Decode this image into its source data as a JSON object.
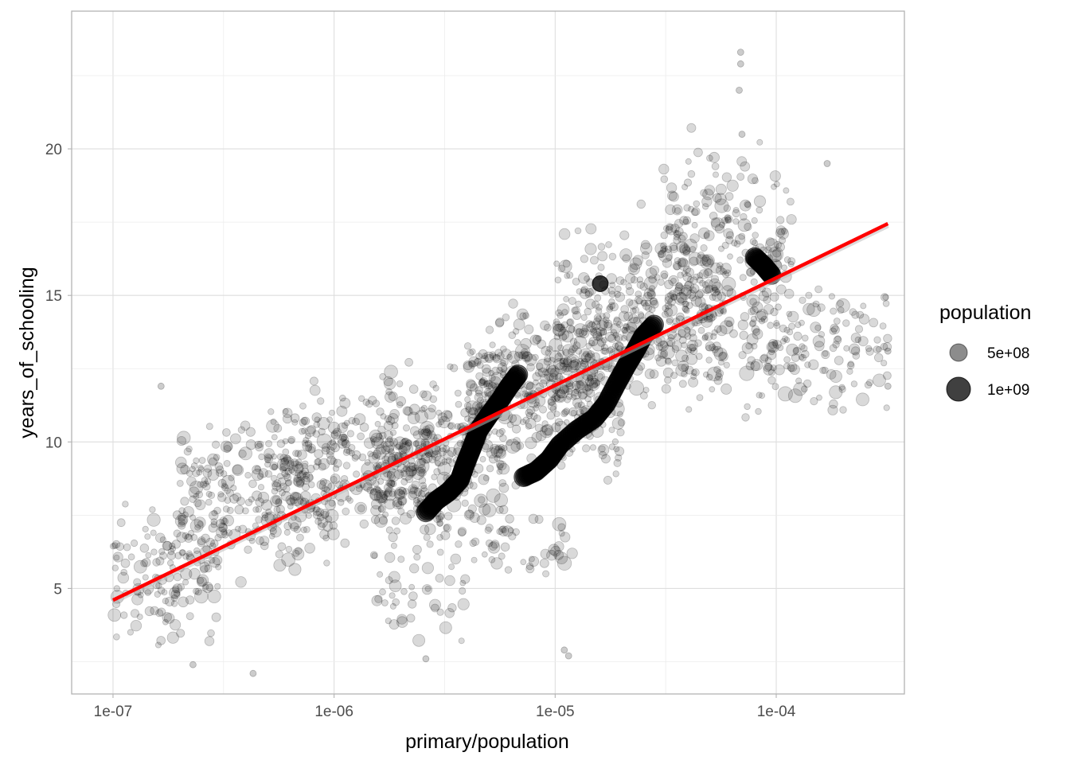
{
  "chart_data": {
    "type": "scatter",
    "title": "",
    "xlabel": "primary/population",
    "ylabel": "years_of_schooling",
    "x_scale": "log10",
    "xlim": [
      6.5e-08,
      0.00038
    ],
    "ylim": [
      1.4,
      24.7
    ],
    "x_ticks": [
      1e-07,
      1e-06,
      1e-05,
      0.0001
    ],
    "x_tick_labels": [
      "1e-07",
      "1e-06",
      "1e-05",
      "1e-04"
    ],
    "y_ticks": [
      5,
      10,
      15,
      20
    ],
    "y_tick_labels": [
      "5",
      "10",
      "15",
      "20"
    ],
    "grid": true,
    "legend": {
      "title": "population",
      "position": "right",
      "entries": [
        {
          "label": "5e+08",
          "value": 500000000
        },
        {
          "label": "1e+09",
          "value": 1000000000
        }
      ]
    },
    "fit_line": {
      "color": "#ff0000",
      "points": [
        [
          1e-07,
          4.6
        ],
        [
          0.00032,
          17.45
        ]
      ]
    },
    "point_color": "#000000",
    "point_alpha": 0.15,
    "large_series": [
      {
        "name": "",
        "points": [
          [
            2.6e-06,
            7.6
          ],
          [
            2.9e-06,
            8.0
          ],
          [
            3.3e-06,
            8.3
          ],
          [
            3.7e-06,
            8.7
          ],
          [
            3.9e-06,
            9.2
          ],
          [
            4.2e-06,
            9.8
          ],
          [
            4.5e-06,
            10.4
          ],
          [
            5e-06,
            10.9
          ],
          [
            5.6e-06,
            11.4
          ],
          [
            6.2e-06,
            11.9
          ],
          [
            6.8e-06,
            12.3
          ]
        ]
      },
      {
        "name": "",
        "points": [
          [
            7.2e-06,
            8.8
          ],
          [
            8.2e-06,
            9.0
          ],
          [
            9.4e-06,
            9.4
          ],
          [
            1.05e-05,
            9.9
          ],
          [
            1.25e-05,
            10.4
          ],
          [
            1.5e-05,
            10.8
          ],
          [
            1.7e-05,
            11.3
          ],
          [
            1.9e-05,
            12.0
          ],
          [
            2.1e-05,
            12.6
          ],
          [
            2.3e-05,
            13.1
          ],
          [
            2.5e-05,
            13.6
          ],
          [
            2.8e-05,
            14.0
          ]
        ]
      },
      {
        "name": "",
        "points": [
          [
            8e-05,
            16.3
          ],
          [
            8.8e-05,
            16.0
          ],
          [
            9.5e-05,
            15.7
          ]
        ]
      },
      {
        "name": "",
        "points": [
          [
            1.6e-05,
            15.4
          ]
        ]
      }
    ],
    "scatter_bands": [
      {
        "x": [
          1e-07,
          3e-07
        ],
        "y": [
          2.5,
          8.5
        ],
        "count": 140
      },
      {
        "x": [
          2e-07,
          1e-06
        ],
        "y": [
          4.5,
          11.5
        ],
        "count": 260
      },
      {
        "x": [
          5e-07,
          3e-06
        ],
        "y": [
          6.0,
          12.5
        ],
        "count": 300
      },
      {
        "x": [
          1.5e-06,
          6e-06
        ],
        "y": [
          5.0,
          13.5
        ],
        "count": 280
      },
      {
        "x": [
          4e-06,
          2e-05
        ],
        "y": [
          8.0,
          15.5
        ],
        "count": 420
      },
      {
        "x": [
          1e-05,
          6e-05
        ],
        "y": [
          10.0,
          18.5
        ],
        "count": 420
      },
      {
        "x": [
          3e-05,
          0.00012
        ],
        "y": [
          12.0,
          21.0
        ],
        "count": 220
      },
      {
        "x": [
          7e-05,
          0.00032
        ],
        "y": [
          10.0,
          16.5
        ],
        "count": 160
      },
      {
        "x": [
          1.5e-06,
          4e-06
        ],
        "y": [
          2.5,
          7.0
        ],
        "count": 40
      },
      {
        "x": [
          5e-06,
          1.2e-05
        ],
        "y": [
          5.0,
          8.0
        ],
        "count": 40
      }
    ],
    "scatter_extra": [
      [
        6.9e-05,
        23.3
      ],
      [
        6.9e-05,
        22.9
      ],
      [
        6.8e-05,
        22.0
      ],
      [
        7e-05,
        20.5
      ],
      [
        1.15e-05,
        2.7
      ],
      [
        1.1e-05,
        2.9
      ],
      [
        2.6e-06,
        2.6
      ],
      [
        0.00017,
        19.5
      ],
      [
        0.00032,
        11.9
      ],
      [
        0.00032,
        13.1
      ],
      [
        1.65e-07,
        11.9
      ],
      [
        2.3e-07,
        2.4
      ],
      [
        4.3e-07,
        2.1
      ]
    ]
  }
}
